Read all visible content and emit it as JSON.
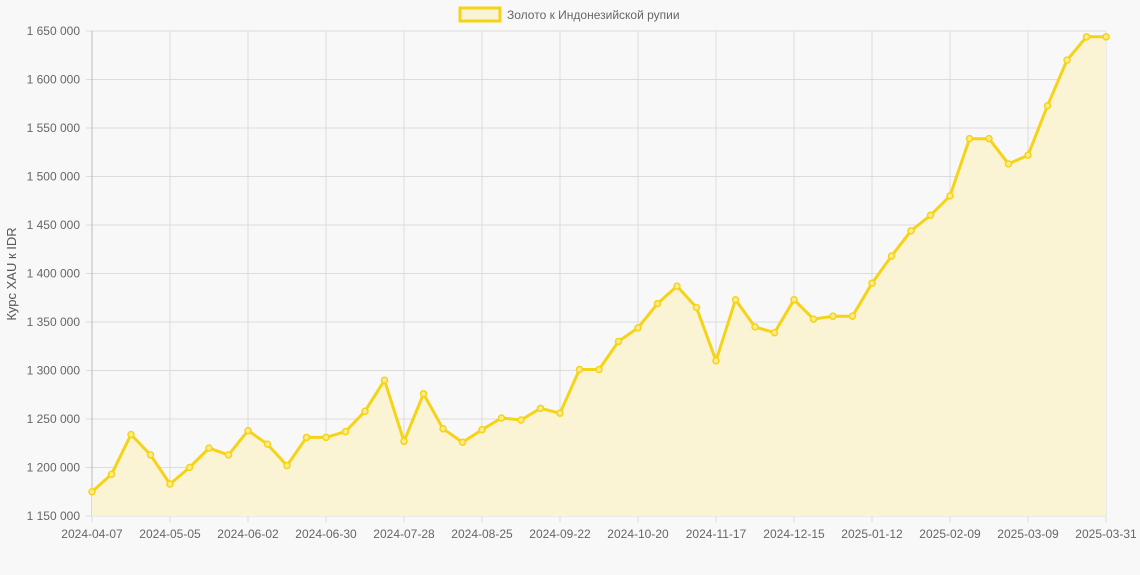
{
  "chart_data": {
    "type": "area",
    "title": "",
    "legend": {
      "position": "top",
      "entries": [
        "Золото к Индонезийской рупии"
      ]
    },
    "xlabel": "",
    "ylabel": "Курс XAU к IDR",
    "ylim": [
      1150000,
      1650000
    ],
    "y_ticks": [
      1150000,
      1200000,
      1250000,
      1300000,
      1350000,
      1400000,
      1450000,
      1500000,
      1550000,
      1600000,
      1650000
    ],
    "y_tick_labels": [
      "1 150 000",
      "1 200 000",
      "1 250 000",
      "1 300 000",
      "1 350 000",
      "1 400 000",
      "1 450 000",
      "1 500 000",
      "1 550 000",
      "1 600 000",
      "1 650 000"
    ],
    "x_tick_labels": [
      "2024-04-07",
      "2024-05-05",
      "2024-06-02",
      "2024-06-30",
      "2024-07-28",
      "2024-08-25",
      "2024-09-22",
      "2024-10-20",
      "2024-11-17",
      "2024-12-15",
      "2025-01-12",
      "2025-02-09",
      "2025-03-09",
      "2025-03-31"
    ],
    "x_tick_indices": [
      0,
      4,
      8,
      12,
      16,
      20,
      24,
      28,
      32,
      36,
      40,
      44,
      48,
      52
    ],
    "grid": true,
    "colors": {
      "line": "#f5d417",
      "fill": "#faf3d4",
      "point_fill": "#fbeb8a",
      "grid": "#dcdcdc",
      "axis_text": "#666666",
      "background": "#f8f8f8"
    },
    "series": [
      {
        "name": "Золото к Индонезийской рупии",
        "values": [
          1175000,
          1193000,
          1234000,
          1213000,
          1183000,
          1200000,
          1220000,
          1213000,
          1238000,
          1224000,
          1202000,
          1231000,
          1231000,
          1237000,
          1258000,
          1290000,
          1227000,
          1276000,
          1240000,
          1226000,
          1239000,
          1251000,
          1249000,
          1261000,
          1256000,
          1301000,
          1301000,
          1330000,
          1344000,
          1369000,
          1387000,
          1365000,
          1310000,
          1373000,
          1345000,
          1339000,
          1373000,
          1353000,
          1356000,
          1356000,
          1390000,
          1418000,
          1444000,
          1460000,
          1480000,
          1539000,
          1539000,
          1513000,
          1522000,
          1573000,
          1620000,
          1644000,
          1644000
        ]
      }
    ]
  }
}
